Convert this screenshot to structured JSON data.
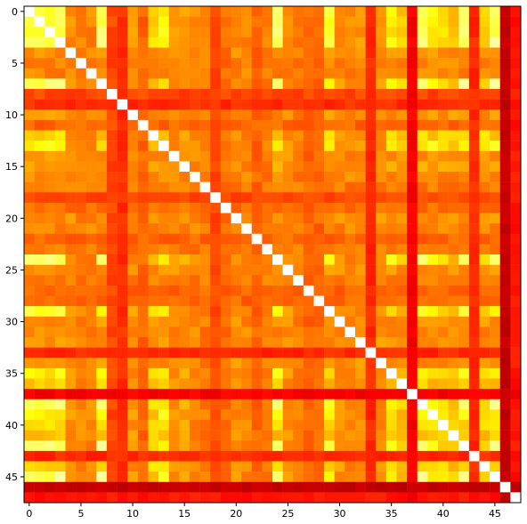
{
  "chart_data": {
    "type": "heatmap",
    "title": "",
    "xlabel": "",
    "ylabel": "",
    "n": 48,
    "colormap": "hot",
    "value_range": [
      0,
      1
    ],
    "diagonal_value": 1.0,
    "x_ticks": [
      0,
      5,
      10,
      15,
      20,
      25,
      30,
      35,
      40,
      45
    ],
    "y_ticks": [
      0,
      5,
      10,
      15,
      20,
      25,
      30,
      35,
      40,
      45
    ],
    "x_tick_labels": [
      "0",
      "5",
      "10",
      "15",
      "20",
      "25",
      "30",
      "35",
      "40",
      "45"
    ],
    "y_tick_labels": [
      "0",
      "5",
      "10",
      "15",
      "20",
      "25",
      "30",
      "35",
      "40",
      "45"
    ],
    "xlim": [
      -0.5,
      47.5
    ],
    "ylim": [
      47.5,
      -0.5
    ],
    "grid": false,
    "row_col_levels": [
      0.92,
      0.9,
      0.88,
      0.93,
      0.62,
      0.6,
      0.6,
      0.95,
      0.5,
      0.46,
      0.62,
      0.55,
      0.72,
      0.78,
      0.62,
      0.65,
      0.6,
      0.58,
      0.5,
      0.56,
      0.62,
      0.6,
      0.55,
      0.58,
      0.97,
      0.62,
      0.58,
      0.55,
      0.55,
      0.82,
      0.62,
      0.6,
      0.62,
      0.45,
      0.62,
      0.78,
      0.7,
      0.38,
      0.92,
      0.78,
      0.72,
      0.7,
      0.9,
      0.45,
      0.72,
      0.95,
      0.3,
      0.42
    ]
  }
}
